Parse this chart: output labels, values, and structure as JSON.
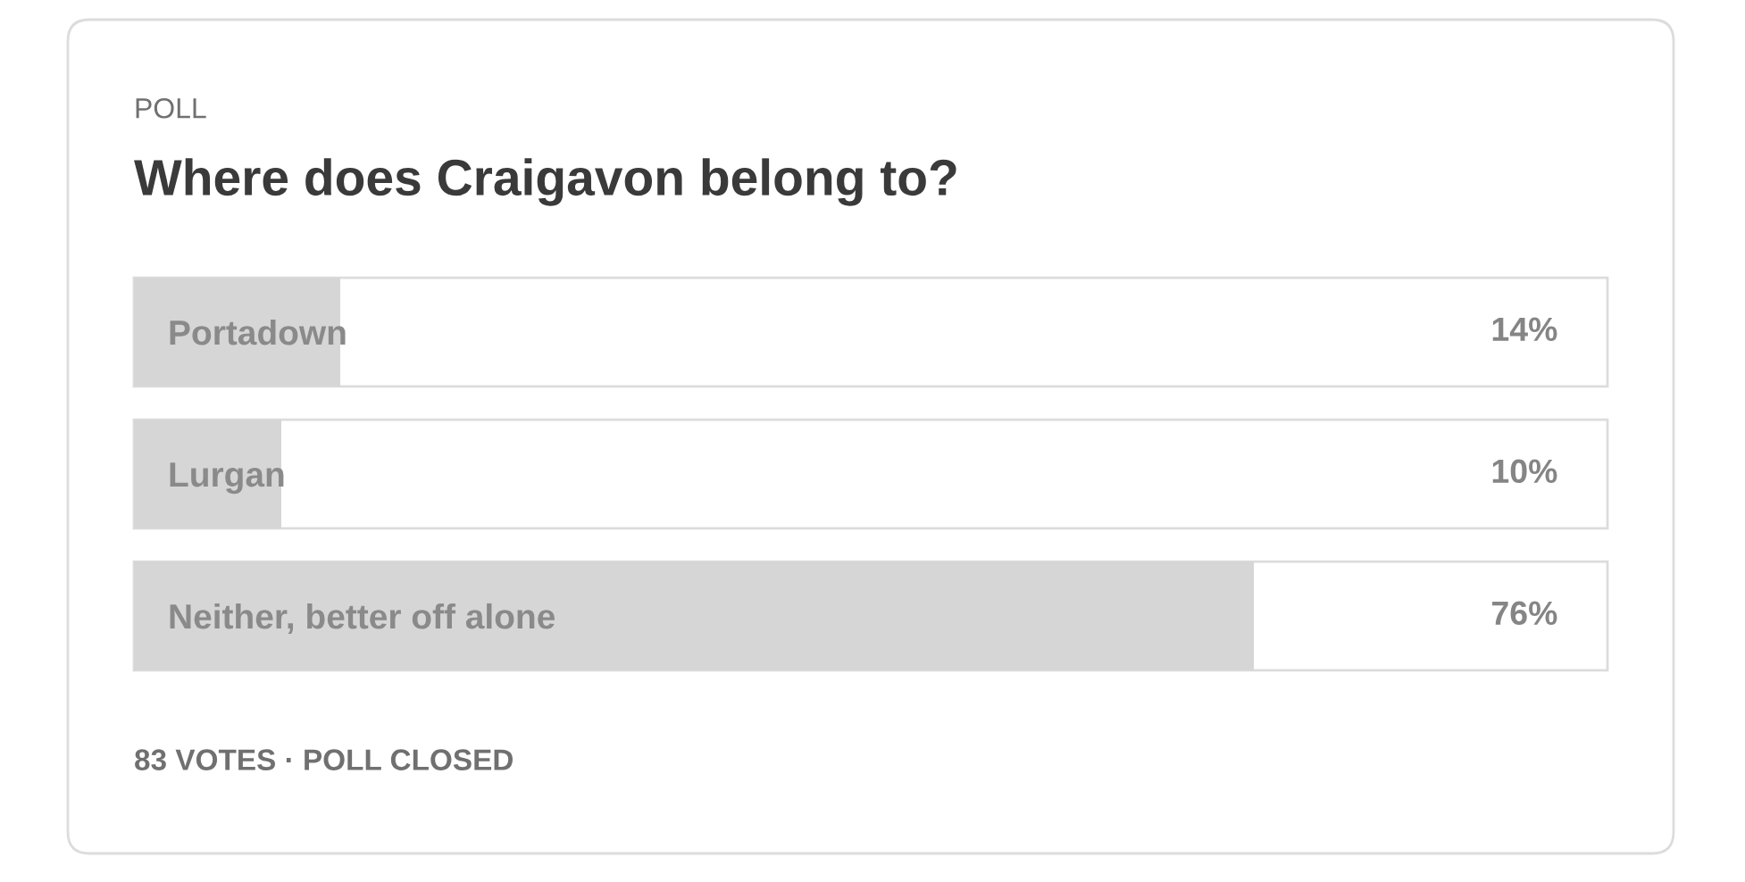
{
  "chart_data": {
    "type": "bar",
    "orientation": "horizontal",
    "title": "Where does Craigavon belong to?",
    "annotations": [
      "POLL",
      "83 VOTES · POLL CLOSED"
    ],
    "categories": [
      "Portadown",
      "Lurgan",
      "Neither, better off alone"
    ],
    "values": [
      14,
      10,
      76
    ],
    "value_labels": [
      "14%",
      "10%",
      "76%"
    ],
    "color": "#d6d6d6",
    "xlim": [
      0,
      100
    ],
    "tick_labels": "y"
  }
}
